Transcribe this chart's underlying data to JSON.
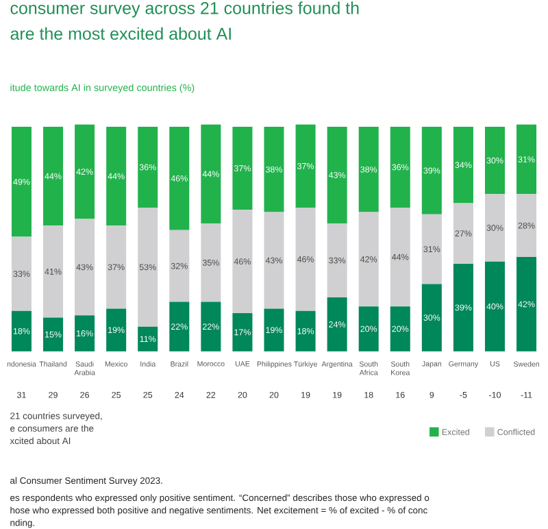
{
  "chart_data": {
    "type": "bar",
    "stacked": true,
    "title": "consumer survey across 21 countries found th\nare the most excited about AI",
    "subtitle": "itude towards AI in surveyed countries (%)",
    "categories": [
      "ndonesia",
      "Thailand",
      "Saudi Arabia",
      "Mexico",
      "India",
      "Brazil",
      "Morocco",
      "UAE",
      "Philippines",
      "Türkiye",
      "Argentina",
      "South Africa",
      "South Korea",
      "Japan",
      "Germany",
      "US",
      "Sweden"
    ],
    "series": [
      {
        "color": "#00875a",
        "values": [
          18,
          15,
          16,
          19,
          11,
          22,
          22,
          17,
          19,
          18,
          24,
          20,
          20,
          30,
          39,
          40,
          42
        ],
        "value_labels": [
          "18%",
          "15%",
          "16%",
          "19%",
          "11%",
          "22%",
          "22%",
          "17%",
          "19%",
          "18%",
          "24%",
          "20%",
          "20%",
          "30%",
          "39%",
          "40%",
          "42%"
        ]
      },
      {
        "name": "Conflicted",
        "color": "#d0d0d2",
        "values": [
          33,
          41,
          43,
          37,
          53,
          32,
          35,
          46,
          43,
          46,
          33,
          42,
          44,
          31,
          27,
          30,
          28
        ],
        "value_labels": [
          "33%",
          "41%",
          "43%",
          "37%",
          "53%",
          "32%",
          "35%",
          "46%",
          "43%",
          "46%",
          "33%",
          "42%",
          "44%",
          "31%",
          "27%",
          "30%",
          "28%"
        ]
      },
      {
        "name": "Excited",
        "color": "#22b24c",
        "values": [
          49,
          44,
          42,
          44,
          36,
          46,
          44,
          37,
          38,
          37,
          43,
          38,
          36,
          39,
          34,
          30,
          31
        ],
        "value_labels": [
          "49%",
          "44%",
          "42%",
          "44%",
          "36%",
          "46%",
          "44%",
          "37%",
          "38%",
          "37%",
          "43%",
          "38%",
          "36%",
          "39%",
          "34%",
          "30%",
          "31%"
        ]
      }
    ],
    "legend": "bottom right",
    "annotations": [
      "31",
      "29",
      "26",
      "25",
      "25",
      "24",
      "22",
      "20",
      "20",
      "19",
      "19",
      "18",
      "16",
      "9",
      "-5",
      "-10",
      "-11",
      "21 countries surveyed,\ne consumers are the\nxcited about AI",
      "al Consumer Sentiment Survey 2023.",
      "es respondents who expressed only positive sentiment. “Concerned” describes those who expressed o\nhose who expressed both positive and negative sentiments. Net excitement  = % of excited - % of conc\nnding."
    ]
  }
}
